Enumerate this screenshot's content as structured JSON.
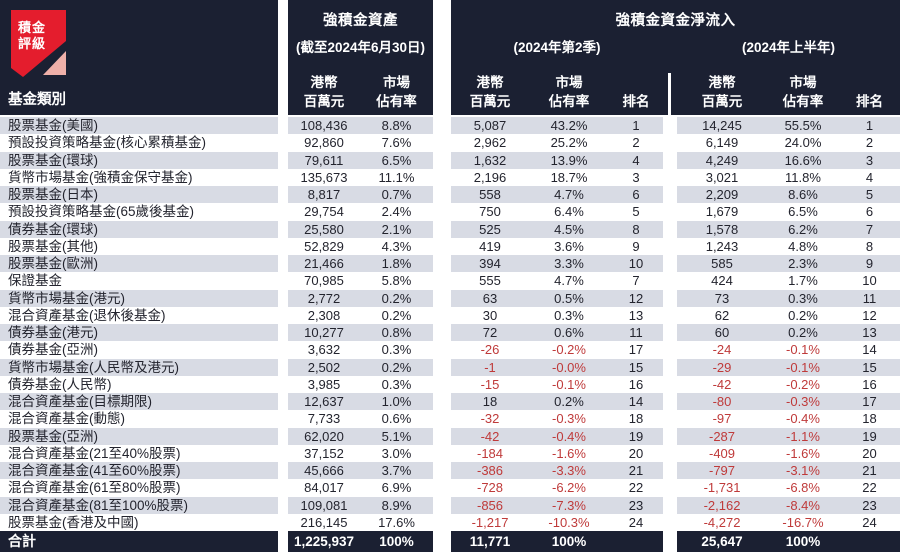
{
  "logo": {
    "line1": "積金",
    "line2": "評級"
  },
  "colors": {
    "header_navy": "#1b2032",
    "stripe_gray": "#d8dbe4",
    "negative_red": "#bf3a3a",
    "logo_red": "#e41d2d",
    "logo_pink": "#efb0a9",
    "gutter_white": "#ffffff"
  },
  "header": {
    "category_label": "基金類別",
    "assets_title": "強積金資產",
    "assets_subtitle": "(截至2024年6月30日)",
    "netflow_title": "強積金資金淨流入",
    "netflow_q2_subtitle": "(2024年第2季)",
    "netflow_h1_subtitle": "(2024年上半年)",
    "cols": {
      "hkd_l1": "港幣",
      "hkd_l2": "百萬元",
      "share_l1": "市場",
      "share_l2": "佔有率",
      "rank": "排名"
    }
  },
  "chart_data": {
    "type": "table",
    "columns": [
      "基金類別",
      "強積金資產 港幣百萬元 (截至2024年6月30日)",
      "強積金資產 市場佔有率",
      "強積金資金淨流入 港幣百萬元 (2024年第2季)",
      "市場佔有率 (2024年第2季)",
      "排名 (2024年第2季)",
      "強積金資金淨流入 港幣百萬元 (2024年上半年)",
      "市場佔有率 (2024年上半年)",
      "排名 (2024年上半年)"
    ],
    "rows": [
      {
        "cat": "股票基金(美國)",
        "a_v": "108,436",
        "a_s": "8.8%",
        "q_v": "5,087",
        "q_s": "43.2%",
        "q_r": "1",
        "h_v": "14,245",
        "h_s": "55.5%",
        "h_r": "1"
      },
      {
        "cat": "預設投資策略基金(核心累積基金)",
        "a_v": "92,860",
        "a_s": "7.6%",
        "q_v": "2,962",
        "q_s": "25.2%",
        "q_r": "2",
        "h_v": "6,149",
        "h_s": "24.0%",
        "h_r": "2"
      },
      {
        "cat": "股票基金(環球)",
        "a_v": "79,611",
        "a_s": "6.5%",
        "q_v": "1,632",
        "q_s": "13.9%",
        "q_r": "4",
        "h_v": "4,249",
        "h_s": "16.6%",
        "h_r": "3"
      },
      {
        "cat": "貨幣市場基金(強積金保守基金)",
        "a_v": "135,673",
        "a_s": "11.1%",
        "q_v": "2,196",
        "q_s": "18.7%",
        "q_r": "3",
        "h_v": "3,021",
        "h_s": "11.8%",
        "h_r": "4"
      },
      {
        "cat": "股票基金(日本)",
        "a_v": "8,817",
        "a_s": "0.7%",
        "q_v": "558",
        "q_s": "4.7%",
        "q_r": "6",
        "h_v": "2,209",
        "h_s": "8.6%",
        "h_r": "5"
      },
      {
        "cat": "預設投資策略基金(65歲後基金)",
        "a_v": "29,754",
        "a_s": "2.4%",
        "q_v": "750",
        "q_s": "6.4%",
        "q_r": "5",
        "h_v": "1,679",
        "h_s": "6.5%",
        "h_r": "6"
      },
      {
        "cat": "債券基金(環球)",
        "a_v": "25,580",
        "a_s": "2.1%",
        "q_v": "525",
        "q_s": "4.5%",
        "q_r": "8",
        "h_v": "1,578",
        "h_s": "6.2%",
        "h_r": "7"
      },
      {
        "cat": "股票基金(其他)",
        "a_v": "52,829",
        "a_s": "4.3%",
        "q_v": "419",
        "q_s": "3.6%",
        "q_r": "9",
        "h_v": "1,243",
        "h_s": "4.8%",
        "h_r": "8"
      },
      {
        "cat": "股票基金(歐洲)",
        "a_v": "21,466",
        "a_s": "1.8%",
        "q_v": "394",
        "q_s": "3.3%",
        "q_r": "10",
        "h_v": "585",
        "h_s": "2.3%",
        "h_r": "9"
      },
      {
        "cat": "保證基金",
        "a_v": "70,985",
        "a_s": "5.8%",
        "q_v": "555",
        "q_s": "4.7%",
        "q_r": "7",
        "h_v": "424",
        "h_s": "1.7%",
        "h_r": "10"
      },
      {
        "cat": "貨幣市場基金(港元)",
        "a_v": "2,772",
        "a_s": "0.2%",
        "q_v": "63",
        "q_s": "0.5%",
        "q_r": "12",
        "h_v": "73",
        "h_s": "0.3%",
        "h_r": "11"
      },
      {
        "cat": "混合資產基金(退休後基金)",
        "a_v": "2,308",
        "a_s": "0.2%",
        "q_v": "30",
        "q_s": "0.3%",
        "q_r": "13",
        "h_v": "62",
        "h_s": "0.2%",
        "h_r": "12"
      },
      {
        "cat": "債券基金(港元)",
        "a_v": "10,277",
        "a_s": "0.8%",
        "q_v": "72",
        "q_s": "0.6%",
        "q_r": "11",
        "h_v": "60",
        "h_s": "0.2%",
        "h_r": "13"
      },
      {
        "cat": "債券基金(亞洲)",
        "a_v": "3,632",
        "a_s": "0.3%",
        "q_v": "-26",
        "q_s": "-0.2%",
        "q_r": "17",
        "h_v": "-24",
        "h_s": "-0.1%",
        "h_r": "14"
      },
      {
        "cat": "貨幣市場基金(人民幣及港元)",
        "a_v": "2,502",
        "a_s": "0.2%",
        "q_v": "-1",
        "q_s": "-0.0%",
        "q_r": "15",
        "h_v": "-29",
        "h_s": "-0.1%",
        "h_r": "15"
      },
      {
        "cat": "債券基金(人民幣)",
        "a_v": "3,985",
        "a_s": "0.3%",
        "q_v": "-15",
        "q_s": "-0.1%",
        "q_r": "16",
        "h_v": "-42",
        "h_s": "-0.2%",
        "h_r": "16"
      },
      {
        "cat": "混合資產基金(目標期限)",
        "a_v": "12,637",
        "a_s": "1.0%",
        "q_v": "18",
        "q_s": "0.2%",
        "q_r": "14",
        "h_v": "-80",
        "h_s": "-0.3%",
        "h_r": "17"
      },
      {
        "cat": "混合資產基金(動態)",
        "a_v": "7,733",
        "a_s": "0.6%",
        "q_v": "-32",
        "q_s": "-0.3%",
        "q_r": "18",
        "h_v": "-97",
        "h_s": "-0.4%",
        "h_r": "18"
      },
      {
        "cat": "股票基金(亞洲)",
        "a_v": "62,020",
        "a_s": "5.1%",
        "q_v": "-42",
        "q_s": "-0.4%",
        "q_r": "19",
        "h_v": "-287",
        "h_s": "-1.1%",
        "h_r": "19"
      },
      {
        "cat": "混合資產基金(21至40%股票)",
        "a_v": "37,152",
        "a_s": "3.0%",
        "q_v": "-184",
        "q_s": "-1.6%",
        "q_r": "20",
        "h_v": "-409",
        "h_s": "-1.6%",
        "h_r": "20"
      },
      {
        "cat": "混合資產基金(41至60%股票)",
        "a_v": "45,666",
        "a_s": "3.7%",
        "q_v": "-386",
        "q_s": "-3.3%",
        "q_r": "21",
        "h_v": "-797",
        "h_s": "-3.1%",
        "h_r": "21"
      },
      {
        "cat": "混合資產基金(61至80%股票)",
        "a_v": "84,017",
        "a_s": "6.9%",
        "q_v": "-728",
        "q_s": "-6.2%",
        "q_r": "22",
        "h_v": "-1,731",
        "h_s": "-6.8%",
        "h_r": "22"
      },
      {
        "cat": "混合資產基金(81至100%股票)",
        "a_v": "109,081",
        "a_s": "8.9%",
        "q_v": "-856",
        "q_s": "-7.3%",
        "q_r": "23",
        "h_v": "-2,162",
        "h_s": "-8.4%",
        "h_r": "23"
      },
      {
        "cat": "股票基金(香港及中國)",
        "a_v": "216,145",
        "a_s": "17.6%",
        "q_v": "-1,217",
        "q_s": "-10.3%",
        "q_r": "24",
        "h_v": "-4,272",
        "h_s": "-16.7%",
        "h_r": "24"
      }
    ],
    "total": {
      "cat": "合計",
      "a_v": "1,225,937",
      "a_s": "100%",
      "q_v": "11,771",
      "q_s": "100%",
      "h_v": "25,647",
      "h_s": "100%"
    }
  }
}
